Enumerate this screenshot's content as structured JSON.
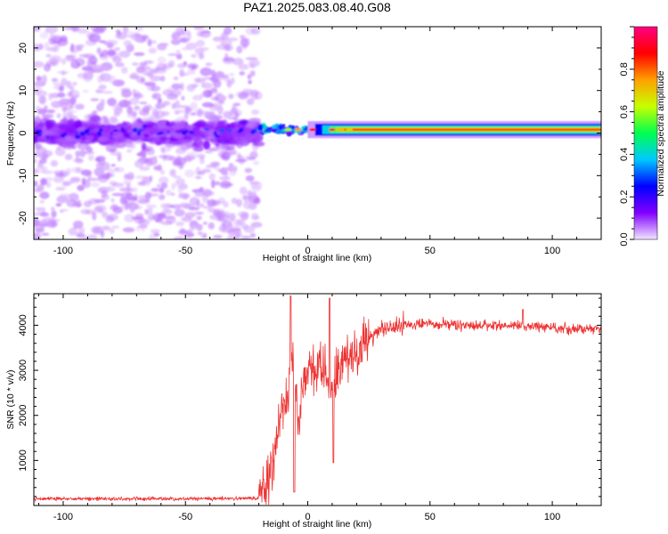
{
  "title": "PAZ1.2025.083.08.40.G08",
  "chart_data": [
    {
      "type": "heatmap",
      "xlabel": "Height of straight line (km)",
      "ylabel": "Frequency (Hz)",
      "xlim": [
        -112,
        120
      ],
      "ylim": [
        -25,
        25
      ],
      "x_ticks": [
        -100,
        -50,
        0,
        50,
        100
      ],
      "y_ticks": [
        -20,
        -10,
        0,
        10,
        20
      ],
      "colorbar": {
        "label": "Normalized spectral amplitude",
        "range": [
          0,
          1
        ],
        "ticks": [
          0.0,
          0.2,
          0.4,
          0.6,
          0.8
        ],
        "colors": [
          "#f2e6ff",
          "#8000ff",
          "#0000ff",
          "#00c8ff",
          "#00ff50",
          "#c8ff00",
          "#ffa000",
          "#ff0000",
          "#ff0080"
        ]
      },
      "features": {
        "noise_region_x": [
          -112,
          -20
        ],
        "noise_band_freq_hz": [
          -5,
          5
        ],
        "signal_line_x": [
          -20,
          120
        ],
        "signal_line_freq_hz": 0.8,
        "signal_line_amplitude": 0.85
      }
    },
    {
      "type": "line",
      "xlabel": "Height of straight line (km)",
      "ylabel": "SNR (10 * v/v)",
      "xlim": [
        -112,
        120
      ],
      "ylim": [
        0,
        4700
      ],
      "x_ticks": [
        -100,
        -50,
        0,
        50,
        100
      ],
      "y_ticks": [
        1000,
        2000,
        3000,
        4000
      ],
      "color": "#ee3333",
      "series_profile": {
        "x": [
          -112,
          -50,
          -20,
          -16,
          -12,
          -8,
          -6,
          -4,
          0,
          5,
          10,
          15,
          20,
          25,
          30,
          40,
          50,
          60,
          80,
          100,
          120
        ],
        "y": [
          150,
          150,
          160,
          600,
          1700,
          2600,
          3500,
          2000,
          2900,
          3100,
          2500,
          3400,
          3300,
          3700,
          3900,
          4000,
          4050,
          4000,
          4000,
          3950,
          3900
        ],
        "spikes": [
          [
            -7,
            4650
          ],
          [
            -5.5,
            300
          ],
          [
            9,
            4600
          ],
          [
            10.5,
            950
          ],
          [
            88,
            4350
          ]
        ]
      }
    }
  ]
}
